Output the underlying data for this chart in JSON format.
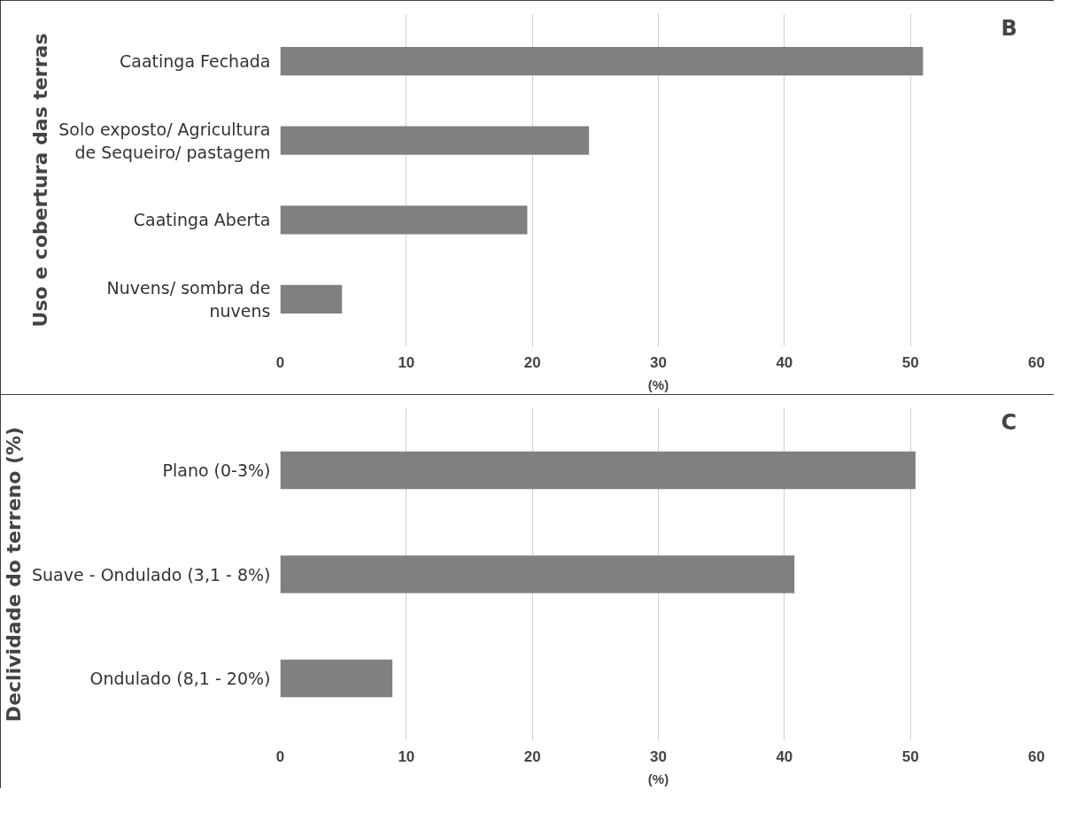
{
  "chart_data": [
    {
      "type": "bar",
      "orientation": "horizontal",
      "ylabel": "Uso e cobertura das terras",
      "xlabel": "(%)",
      "annotations": [
        "B"
      ],
      "categories": [
        "Caatinga Fechada",
        "Solo exposto/ Agricultura\nde Sequeiro/ pastagem",
        "Caatinga Aberta",
        "Nuvens/ sombra de\nnuvens"
      ],
      "values": [
        51.0,
        24.5,
        19.6,
        4.9
      ],
      "color": "#808080",
      "xlim": [
        0,
        60
      ],
      "xticks": [
        0,
        10,
        20,
        30,
        40,
        50,
        60
      ],
      "grid": "x"
    },
    {
      "type": "bar",
      "orientation": "horizontal",
      "ylabel": "Declividade do terreno (%)",
      "xlabel": "(%)",
      "annotations": [
        "C"
      ],
      "categories": [
        "Plano (0-3%)",
        "Suave - Ondulado (3,1 - 8%)",
        "Ondulado (8,1 - 20%)"
      ],
      "values": [
        50.4,
        40.8,
        8.9
      ],
      "color": "#808080",
      "xlim": [
        0,
        60
      ],
      "xticks": [
        0,
        10,
        20,
        30,
        40,
        50,
        60
      ],
      "grid": "x"
    }
  ]
}
